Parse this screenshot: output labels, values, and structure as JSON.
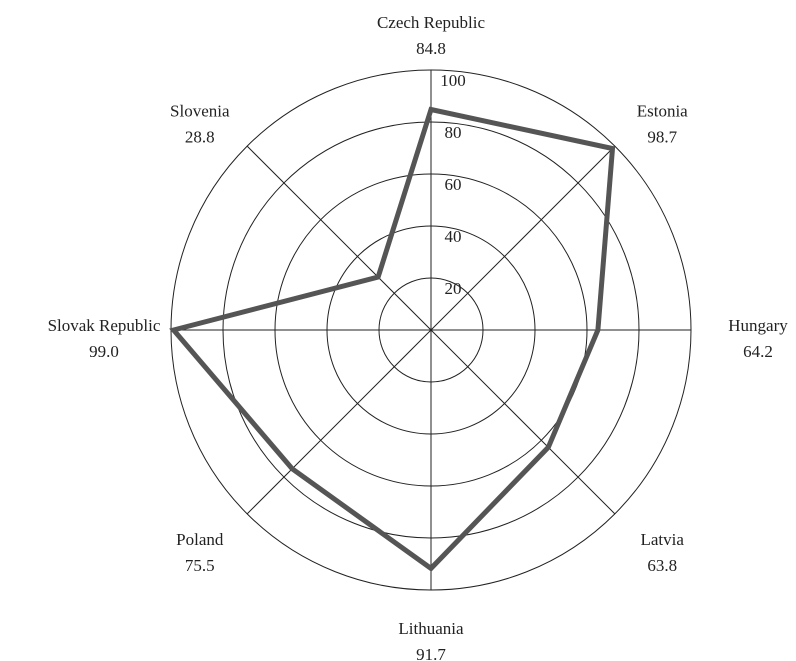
{
  "chart_data": {
    "type": "radar",
    "categories": [
      "Czech Republic",
      "Estonia",
      "Hungary",
      "Latvia",
      "Lithuania",
      "Poland",
      "Slovak Republic",
      "Slovenia"
    ],
    "values": [
      84.8,
      98.7,
      64.2,
      63.8,
      91.7,
      75.5,
      99.0,
      28.8
    ],
    "value_labels": [
      "84.8",
      "98.7",
      "64.2",
      "63.8",
      "91.7",
      "75.5",
      "99.0",
      "28.8"
    ],
    "color": "#555555",
    "ylim": [
      0,
      100
    ],
    "yticks": [
      20,
      40,
      60,
      80,
      100
    ],
    "grid": true
  }
}
